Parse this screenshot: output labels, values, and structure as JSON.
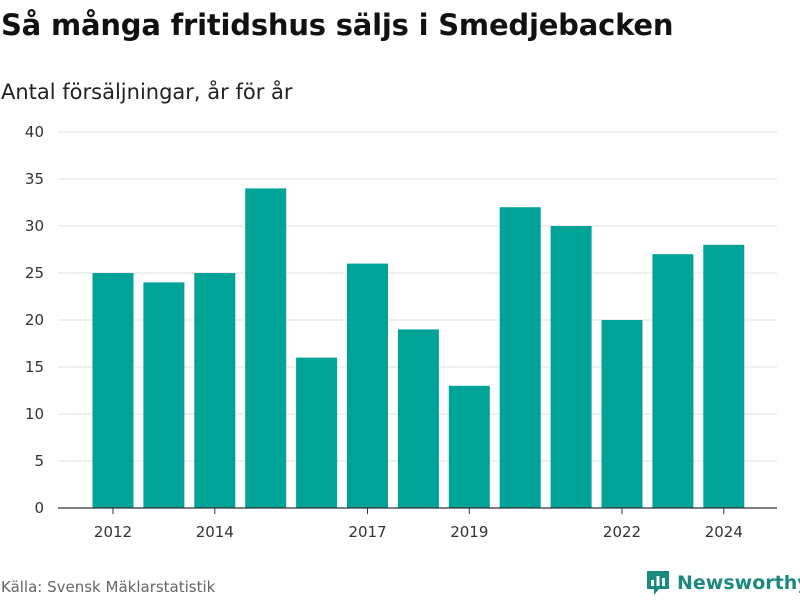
{
  "header": {
    "title": "Så många fritidshus säljs i Smedjebacken",
    "subtitle": "Antal försäljningar, år för år"
  },
  "footer": {
    "source": "Källa: Svensk Mäklarstatistik",
    "brand": "Newsworthy",
    "brand_icon": "bar-chart-logo-icon"
  },
  "colors": {
    "bar": "#00a398",
    "grid": "#e0e0e0",
    "axis": "#333333",
    "brand": "#1a8a7e"
  },
  "chart_data": {
    "type": "bar",
    "categories": [
      "2012",
      "2013",
      "2014",
      "2015",
      "2016",
      "2017",
      "2018",
      "2019",
      "2020",
      "2021",
      "2022",
      "2023",
      "2024"
    ],
    "values": [
      25,
      24,
      25,
      34,
      16,
      26,
      19,
      13,
      32,
      30,
      20,
      27,
      28
    ],
    "x_tick_labels": [
      "2012",
      "2014",
      "2017",
      "2019",
      "2022",
      "2024"
    ],
    "y_ticks": [
      0,
      5,
      10,
      15,
      20,
      25,
      30,
      35,
      40
    ],
    "ylim": [
      0,
      40
    ],
    "xlabel": "",
    "ylabel": "",
    "grid": true,
    "legend": "none"
  }
}
